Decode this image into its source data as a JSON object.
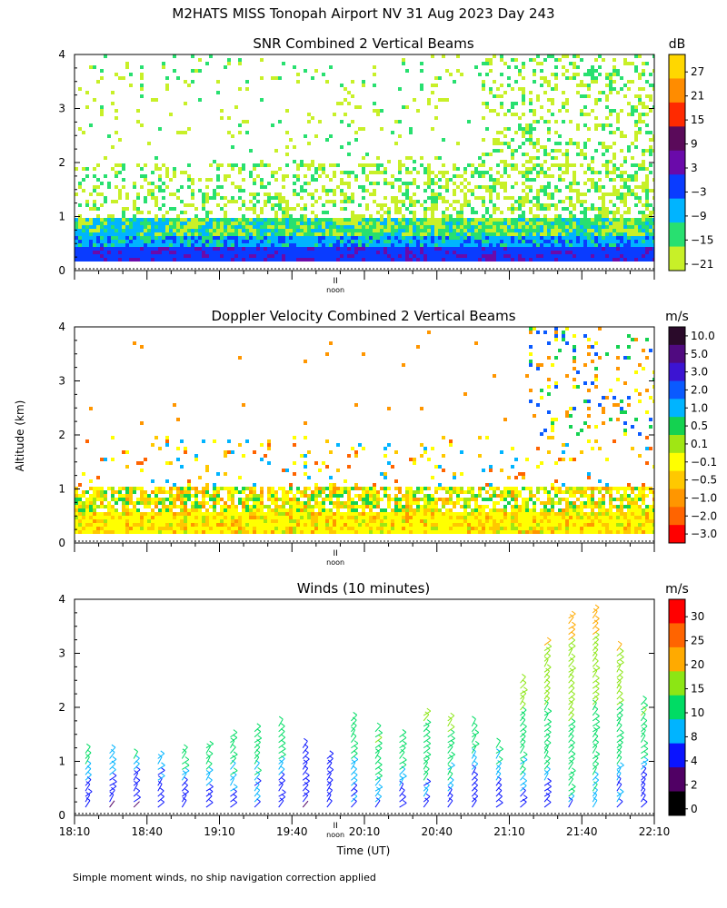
{
  "page_title": "M2HATS MISS Tonopah Airport NV  31 Aug 2023 Day 243",
  "footnote": "Simple moment winds, no ship navigation correction applied",
  "shared": {
    "ylabel": "Altitude (km)",
    "xlabel": "Time (UT)",
    "y_ticks": [
      "0",
      "1",
      "2",
      "3",
      "4"
    ],
    "x_ticks": [
      "18:10",
      "18:40",
      "19:10",
      "19:40",
      "20:10",
      "20:40",
      "21:10",
      "21:40",
      "22:10"
    ],
    "noon_label": "noon",
    "xlim_minutes_since_midnight": [
      1090,
      1330
    ],
    "ylim_km": [
      0,
      4
    ]
  },
  "chart_data": [
    {
      "type": "heatmap",
      "title": "SNR Combined 2 Vertical Beams",
      "unit": "dB",
      "ylabel": "Altitude (km)",
      "xlabel": "Time (UT)",
      "ylim": [
        0,
        4
      ],
      "colorbar_labels": [
        "27",
        "21",
        "15",
        "9",
        "3",
        "−3",
        "−9",
        "−15",
        "−21"
      ],
      "colorbar_colors": [
        "#ffd700",
        "#ff8c00",
        "#ff2a00",
        "#5a0a5a",
        "#6a0aaa",
        "#0a3cff",
        "#00b4ff",
        "#28e070",
        "#c8f028"
      ],
      "profile_km": [
        {
          "alt": 0.3,
          "snr": 3
        },
        {
          "alt": 0.6,
          "snr": -9
        },
        {
          "alt": 1.0,
          "snr": -15
        },
        {
          "alt": 2.0,
          "snr": -21
        },
        {
          "alt": 3.5,
          "snr": -21
        }
      ]
    },
    {
      "type": "heatmap",
      "title": "Doppler Velocity Combined 2 Vertical Beams",
      "unit": "m/s",
      "ylabel": "Altitude (km)",
      "xlabel": "Time (UT)",
      "ylim": [
        0,
        4
      ],
      "colorbar_labels": [
        "10.0",
        "5.0",
        "3.0",
        "2.0",
        "1.0",
        "0.5",
        "0.1",
        "−0.1",
        "−0.5",
        "−1.0",
        "−2.0",
        "−3.0"
      ],
      "colorbar_colors": [
        "#2a0a2a",
        "#500a80",
        "#3c14d2",
        "#0a5aff",
        "#00b4ff",
        "#14d250",
        "#a0e614",
        "#ffff00",
        "#ffc800",
        "#ff9600",
        "#ff6400",
        "#ff0000"
      ],
      "dominant_value_ms": -0.1
    },
    {
      "type": "scatter",
      "title": "Winds (10 minutes)",
      "unit": "m/s",
      "ylabel": "Altitude (km)",
      "xlabel": "Time (UT)",
      "ylim": [
        0,
        4
      ],
      "colorbar_labels": [
        "30",
        "25",
        "20",
        "15",
        "10",
        "8",
        "4",
        "2",
        "0"
      ],
      "colorbar_colors": [
        "#ff0000",
        "#ff6400",
        "#ffaa00",
        "#8ce614",
        "#00dc64",
        "#00b4ff",
        "#0a14ff",
        "#500064",
        "#000000"
      ],
      "x_times": [
        "18:10",
        "18:20",
        "18:30",
        "18:40",
        "18:50",
        "19:00",
        "19:10",
        "19:20",
        "19:30",
        "19:40",
        "19:50",
        "20:00",
        "20:10",
        "20:20",
        "20:30",
        "20:40",
        "20:50",
        "21:00",
        "21:10",
        "21:20",
        "21:30",
        "21:40",
        "21:50",
        "22:00"
      ],
      "top_km": [
        1.2,
        1.2,
        1.1,
        1.1,
        1.2,
        1.3,
        1.5,
        1.6,
        1.7,
        1.3,
        1.1,
        1.8,
        1.6,
        1.5,
        1.9,
        1.8,
        1.7,
        1.3,
        2.5,
        3.2,
        3.7,
        3.8,
        3.1,
        2.1
      ],
      "speed_low_ms": [
        4,
        4,
        3,
        4,
        4,
        4,
        6,
        6,
        6,
        4,
        4,
        6,
        6,
        6,
        6,
        6,
        4,
        4,
        6,
        6,
        8,
        8,
        6,
        4
      ],
      "speed_high_ms": [
        12,
        10,
        10,
        10,
        12,
        14,
        14,
        14,
        12,
        6,
        6,
        14,
        16,
        14,
        16,
        16,
        14,
        12,
        18,
        20,
        22,
        22,
        20,
        16
      ]
    }
  ]
}
